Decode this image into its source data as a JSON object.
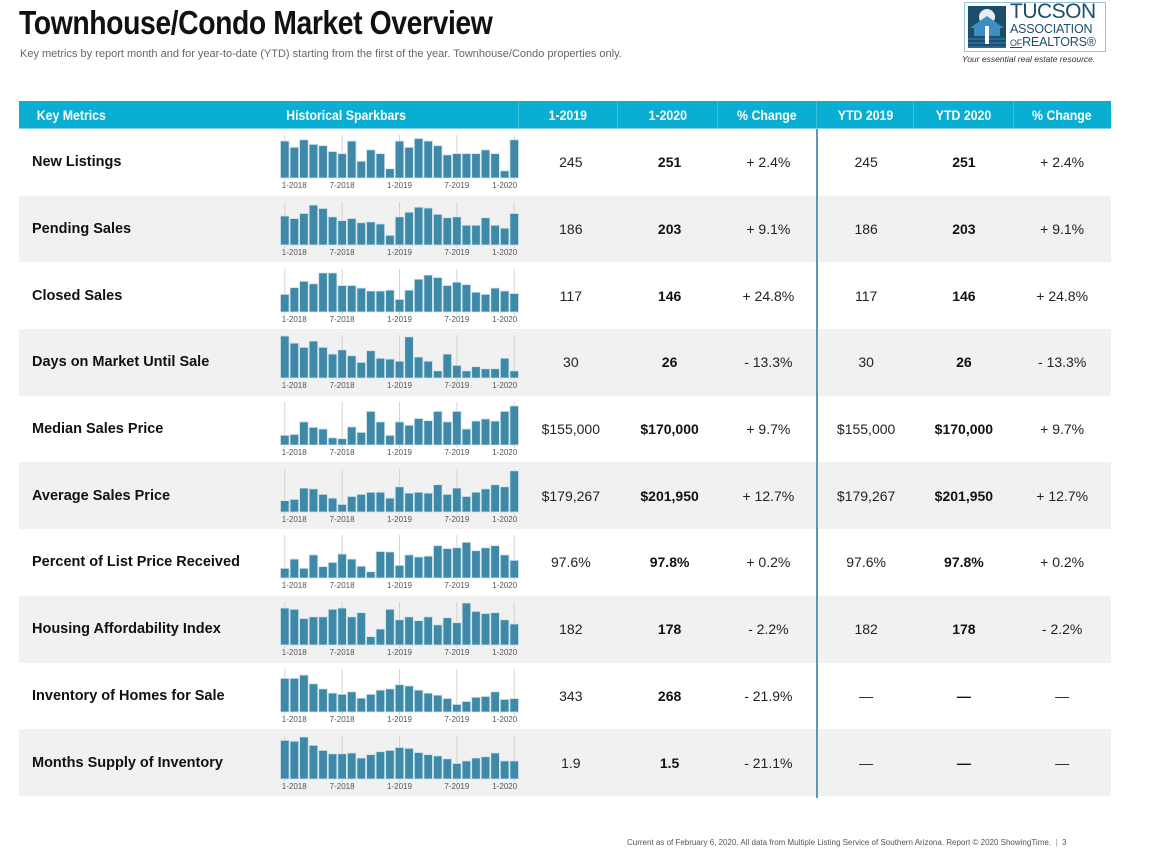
{
  "header": {
    "title": "Townhouse/Condo Market Overview",
    "subtitle": "Key metrics by report month and for year-to-date (YTD) starting from the first of the year. Townhouse/Condo properties only."
  },
  "logo": {
    "line1": "TUCSON",
    "line2": "ASSOCIATION",
    "line3_of": "OF",
    "line3_rest": "REALTORS®",
    "tagline": "Your essential real estate resource."
  },
  "colors": {
    "header_bg": "#0aaed2",
    "bar_fill": "#3e89a7",
    "bar_stroke": "#cfe3ec",
    "row_alt": "#f1f1f1",
    "divider": "#5b97b6"
  },
  "table": {
    "columns": [
      "Key Metrics",
      "Historical Sparkbars",
      "1-2019",
      "1-2020",
      "% Change",
      "YTD 2019",
      "YTD 2020",
      "% Change"
    ],
    "spark_axis_labels": [
      "1-2018",
      "7-2018",
      "1-2019",
      "7-2019",
      "1-2020"
    ],
    "rows": [
      {
        "metric": "New Listings",
        "v2019": "245",
        "v2020": "251",
        "pct": "+ 2.4%",
        "ytd2019": "245",
        "ytd2020": "251",
        "ytdpct": "+ 2.4%"
      },
      {
        "metric": "Pending Sales",
        "v2019": "186",
        "v2020": "203",
        "pct": "+ 9.1%",
        "ytd2019": "186",
        "ytd2020": "203",
        "ytdpct": "+ 9.1%"
      },
      {
        "metric": "Closed Sales",
        "v2019": "117",
        "v2020": "146",
        "pct": "+ 24.8%",
        "ytd2019": "117",
        "ytd2020": "146",
        "ytdpct": "+ 24.8%"
      },
      {
        "metric": "Days on Market Until Sale",
        "v2019": "30",
        "v2020": "26",
        "pct": "- 13.3%",
        "ytd2019": "30",
        "ytd2020": "26",
        "ytdpct": "- 13.3%"
      },
      {
        "metric": "Median Sales Price",
        "v2019": "$155,000",
        "v2020": "$170,000",
        "pct": "+ 9.7%",
        "ytd2019": "$155,000",
        "ytd2020": "$170,000",
        "ytdpct": "+ 9.7%"
      },
      {
        "metric": "Average Sales Price",
        "v2019": "$179,267",
        "v2020": "$201,950",
        "pct": "+ 12.7%",
        "ytd2019": "$179,267",
        "ytd2020": "$201,950",
        "ytdpct": "+ 12.7%"
      },
      {
        "metric": "Percent of List Price Received",
        "v2019": "97.6%",
        "v2020": "97.8%",
        "pct": "+ 0.2%",
        "ytd2019": "97.6%",
        "ytd2020": "97.8%",
        "ytdpct": "+ 0.2%"
      },
      {
        "metric": "Housing Affordability Index",
        "v2019": "182",
        "v2020": "178",
        "pct": "- 2.2%",
        "ytd2019": "182",
        "ytd2020": "178",
        "ytdpct": "- 2.2%"
      },
      {
        "metric": "Inventory of Homes for Sale",
        "v2019": "343",
        "v2020": "268",
        "pct": "- 21.9%",
        "ytd2019": "—",
        "ytd2020": "—",
        "ytdpct": "—"
      },
      {
        "metric": "Months Supply of Inventory",
        "v2019": "1.9",
        "v2020": "1.5",
        "pct": "- 21.1%",
        "ytd2019": "—",
        "ytd2020": "—",
        "ytdpct": "—"
      }
    ]
  },
  "chart_data": {
    "type": "bar",
    "title": "Historical Sparkbars",
    "note": "Relative bar heights (0-100 scale, no y-axis shown), 25 monthly bars from 1-2018 to 1-2020",
    "x": [
      "1-2018",
      "2-2018",
      "3-2018",
      "4-2018",
      "5-2018",
      "6-2018",
      "7-2018",
      "8-2018",
      "9-2018",
      "10-2018",
      "11-2018",
      "12-2018",
      "1-2019",
      "2-2019",
      "3-2019",
      "4-2019",
      "5-2019",
      "6-2019",
      "7-2019",
      "8-2019",
      "9-2019",
      "10-2019",
      "11-2019",
      "12-2019",
      "1-2020"
    ],
    "tick_labels": [
      "1-2018",
      "7-2018",
      "1-2019",
      "7-2019",
      "1-2020"
    ],
    "ylim": [
      0,
      100
    ],
    "grid": false,
    "series": [
      {
        "name": "New Listings",
        "values": [
          88,
          73,
          91,
          80,
          77,
          63,
          58,
          88,
          40,
          67,
          58,
          22,
          88,
          73,
          94,
          88,
          77,
          55,
          58,
          58,
          58,
          67,
          58,
          17,
          91
        ]
      },
      {
        "name": "Pending Sales",
        "values": [
          69,
          63,
          75,
          95,
          87,
          67,
          58,
          63,
          53,
          55,
          50,
          23,
          67,
          78,
          90,
          88,
          73,
          65,
          67,
          47,
          47,
          65,
          47,
          40,
          75
        ]
      },
      {
        "name": "Closed Sales",
        "values": [
          42,
          58,
          73,
          67,
          93,
          93,
          63,
          63,
          57,
          50,
          50,
          52,
          30,
          52,
          78,
          88,
          82,
          63,
          71,
          65,
          47,
          42,
          57,
          50,
          44
        ]
      },
      {
        "name": "Days on Market Until Sale",
        "values": [
          100,
          83,
          73,
          88,
          73,
          57,
          67,
          53,
          37,
          65,
          47,
          45,
          40,
          98,
          50,
          40,
          17,
          57,
          30,
          17,
          27,
          22,
          22,
          47,
          17
        ]
      },
      {
        "name": "Median Sales Price",
        "values": [
          23,
          25,
          55,
          42,
          38,
          17,
          15,
          43,
          30,
          80,
          55,
          23,
          55,
          47,
          63,
          58,
          80,
          55,
          80,
          38,
          57,
          62,
          57,
          80,
          93
        ]
      },
      {
        "name": "Average Sales Price",
        "values": [
          27,
          30,
          57,
          55,
          42,
          33,
          18,
          37,
          42,
          47,
          47,
          33,
          60,
          45,
          47,
          45,
          65,
          42,
          57,
          37,
          47,
          55,
          65,
          60,
          98
        ]
      },
      {
        "name": "Percent of List Price Received",
        "values": [
          23,
          45,
          23,
          55,
          27,
          37,
          57,
          45,
          28,
          15,
          63,
          62,
          30,
          55,
          50,
          52,
          77,
          70,
          72,
          85,
          65,
          72,
          77,
          55,
          42
        ]
      },
      {
        "name": "Housing Affordability Index",
        "values": [
          88,
          85,
          63,
          67,
          67,
          85,
          88,
          67,
          77,
          20,
          38,
          85,
          60,
          67,
          58,
          67,
          48,
          65,
          53,
          100,
          80,
          75,
          77,
          60,
          50
        ]
      },
      {
        "name": "Inventory of Homes for Sale",
        "values": [
          80,
          80,
          88,
          67,
          55,
          45,
          42,
          48,
          33,
          42,
          52,
          55,
          65,
          62,
          52,
          45,
          40,
          32,
          18,
          25,
          35,
          37,
          48,
          30,
          32
        ]
      },
      {
        "name": "Months Supply of Inventory",
        "values": [
          92,
          90,
          100,
          80,
          68,
          60,
          60,
          62,
          50,
          58,
          65,
          68,
          75,
          73,
          63,
          58,
          55,
          48,
          37,
          43,
          50,
          53,
          62,
          43,
          43
        ]
      }
    ]
  },
  "footer": {
    "text": "Current as of February 6, 2020. All data from Multiple Listing Service of Southern Arizona. Report © 2020 ShowingTime.",
    "page": "3"
  }
}
